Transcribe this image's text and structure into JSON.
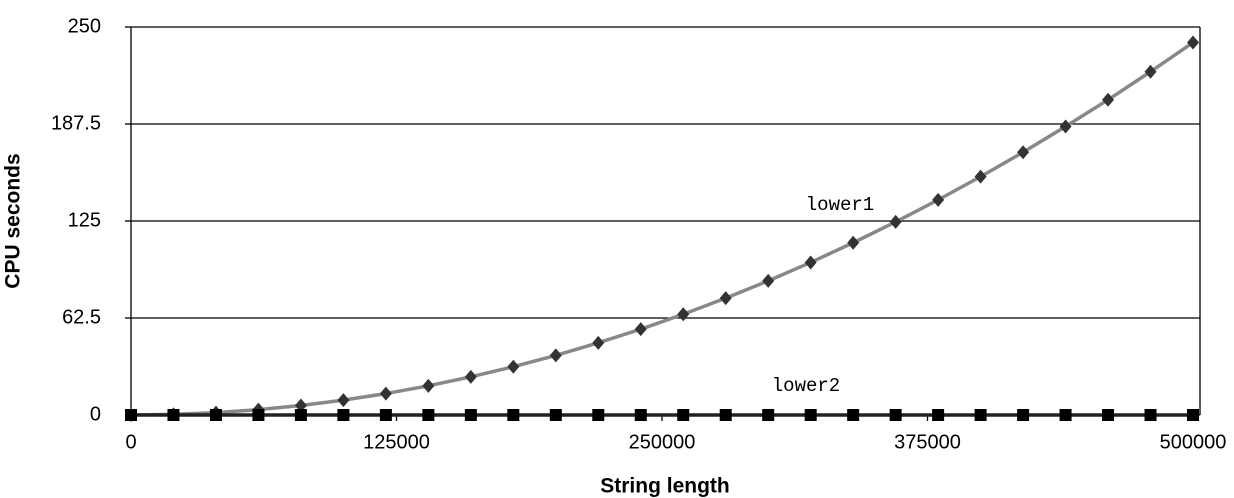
{
  "chart_data": {
    "type": "line",
    "x_label": "String length",
    "y_label": "CPU seconds",
    "x": [
      0,
      20000,
      40000,
      60000,
      80000,
      100000,
      120000,
      140000,
      160000,
      180000,
      200000,
      220000,
      240000,
      260000,
      280000,
      300000,
      320000,
      340000,
      360000,
      380000,
      400000,
      420000,
      440000,
      460000,
      480000,
      500000
    ],
    "series": [
      {
        "name": "lower1",
        "color": "#888888",
        "marker_color": "#333333",
        "marker": "diamond",
        "values": [
          0,
          0.4,
          1.5,
          3.5,
          6.1,
          9.6,
          13.8,
          18.8,
          24.6,
          31.1,
          38.4,
          46.5,
          55.3,
          64.9,
          75.3,
          86.4,
          98.3,
          111.0,
          124.4,
          138.6,
          153.6,
          169.3,
          185.9,
          203.1,
          221.2,
          240.0
        ]
      },
      {
        "name": "lower2",
        "color": "#222222",
        "marker_color": "#000000",
        "marker": "square",
        "values": [
          0,
          0,
          0,
          0,
          0,
          0,
          0,
          0,
          0,
          0,
          0,
          0,
          0,
          0,
          0,
          0,
          0,
          0,
          0,
          0,
          0,
          0,
          0,
          0,
          0,
          0
        ]
      }
    ],
    "xlim": [
      0,
      500000
    ],
    "xticks": [
      0,
      125000,
      250000,
      375000,
      500000
    ],
    "ylim": [
      0,
      250
    ],
    "yticks": [
      0,
      62.5,
      125,
      187.5,
      250
    ],
    "grid": true
  }
}
